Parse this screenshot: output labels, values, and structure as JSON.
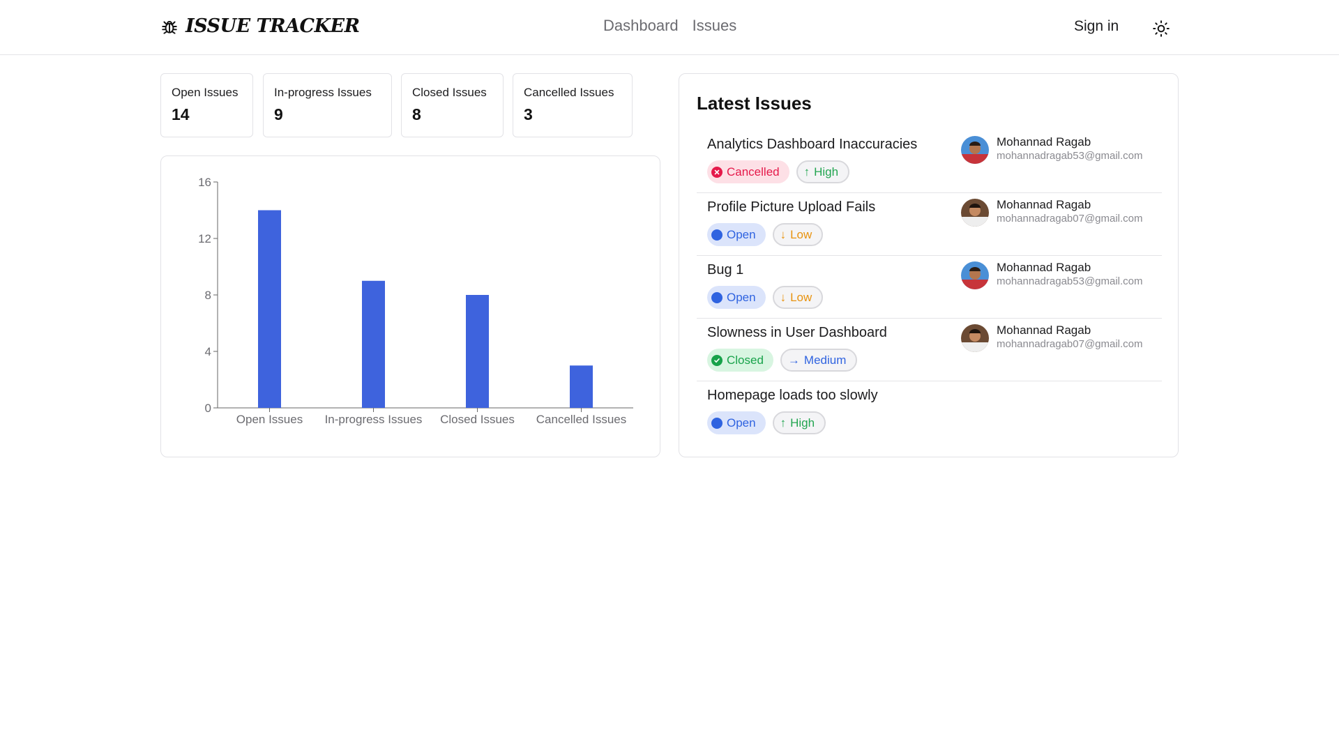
{
  "header": {
    "brand": "ISSUE TRACKER",
    "nav": [
      "Dashboard",
      "Issues"
    ],
    "sign_in": "Sign in",
    "theme_icon": "sun-icon"
  },
  "stats": [
    {
      "label": "Open Issues",
      "value": "14"
    },
    {
      "label": "In-progress Issues",
      "value": "9"
    },
    {
      "label": "Closed Issues",
      "value": "8"
    },
    {
      "label": "Cancelled Issues",
      "value": "3"
    }
  ],
  "chart_data": {
    "type": "bar",
    "categories": [
      "Open Issues",
      "In-progress Issues",
      "Closed Issues",
      "Cancelled Issues"
    ],
    "values": [
      14,
      9,
      8,
      3
    ],
    "ylim": [
      0,
      16
    ],
    "yticks": [
      0,
      4,
      8,
      12,
      16
    ],
    "color": "#3e63dd",
    "title": "",
    "xlabel": "",
    "ylabel": "",
    "grid": false
  },
  "latest": {
    "title": "Latest Issues",
    "items": [
      {
        "title": "Analytics Dashboard Inaccuracies",
        "status": "Cancelled",
        "priority": "High",
        "name": "Mohannad Ragab",
        "email": "mohannadragab53@gmail.com"
      },
      {
        "title": "Profile Picture Upload Fails",
        "status": "Open",
        "priority": "Low",
        "name": "Mohannad Ragab",
        "email": "mohannadragab07@gmail.com"
      },
      {
        "title": "Bug 1",
        "status": "Open",
        "priority": "Low",
        "name": "Mohannad Ragab",
        "email": "mohannadragab53@gmail.com"
      },
      {
        "title": "Slowness in User Dashboard",
        "status": "Closed",
        "priority": "Medium",
        "name": "Mohannad Ragab",
        "email": "mohannadragab07@gmail.com"
      },
      {
        "title": "Homepage loads too slowly",
        "status": "Open",
        "priority": "High"
      }
    ]
  },
  "colors": {
    "accent": "#3e63dd",
    "cancelled": "#e5194a",
    "open": "#2f63e0",
    "closed": "#18a24a",
    "high": "#22a550",
    "low": "#e8930f"
  }
}
